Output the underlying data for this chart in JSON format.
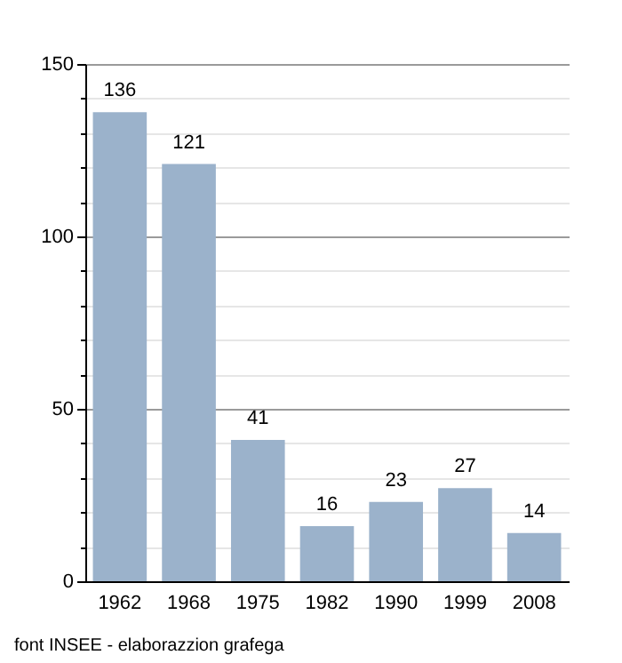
{
  "chart_data": {
    "type": "bar",
    "categories": [
      "1962",
      "1968",
      "1975",
      "1982",
      "1990",
      "1999",
      "2008"
    ],
    "values": [
      136,
      121,
      41,
      16,
      23,
      27,
      14
    ],
    "color": "#9bb2cb",
    "data_labels": true,
    "grid": "y",
    "ylim": [
      0,
      150
    ],
    "yticks": [
      0,
      {
        "value": 10,
        "label": null
      },
      {
        "value": 20,
        "label": null
      },
      {
        "value": 30,
        "label": null
      },
      {
        "value": 40,
        "label": null
      },
      50,
      {
        "value": 60,
        "label": null
      },
      {
        "value": 70,
        "label": null
      },
      {
        "value": 80,
        "label": null
      },
      {
        "value": 90,
        "label": null
      },
      100,
      {
        "value": 110,
        "label": null
      },
      {
        "value": 120,
        "label": null
      },
      {
        "value": 130,
        "label": null
      },
      {
        "value": 140,
        "label": null
      },
      150
    ],
    "annotations": [
      "font INSEE - elaborazzion grafega"
    ]
  }
}
